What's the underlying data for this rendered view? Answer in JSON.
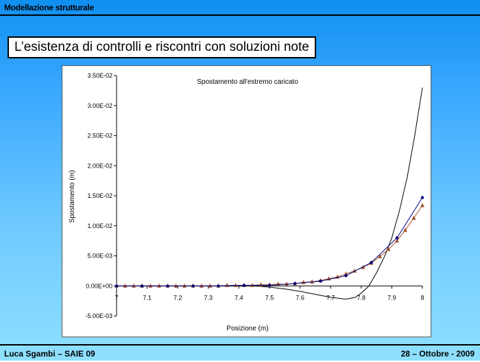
{
  "header": {
    "title": "Modellazione strutturale"
  },
  "slide": {
    "title": "L’esistenza di controlli e riscontri con soluzioni note"
  },
  "footer": {
    "left": "Luca Sgambi – SAIE 09",
    "right": "28 – Ottobre - 2009"
  },
  "chart_data": {
    "type": "line",
    "title": "Spostamento all'estremo caricato",
    "xlabel": "Posizione (m)",
    "ylabel": "Spostamento (m)",
    "xlim": [
      7,
      8
    ],
    "ylim": [
      -0.005,
      0.035
    ],
    "xticks": [
      "7",
      "7.1",
      "7.2",
      "7.3",
      "7.4",
      "7.5",
      "7.6",
      "7.7",
      "7.8",
      "7.9",
      "8"
    ],
    "yticks": [
      "-5.00E-03",
      "0.00E+00",
      "5.00E-03",
      "1.00E-02",
      "1.50E-02",
      "2.00E-02",
      "2.50E-02",
      "3.00E-02",
      "3.50E-02"
    ],
    "grid": false,
    "series": [
      {
        "marker": "circle",
        "color": "#000080",
        "x": [
          7,
          7.083,
          7.167,
          7.25,
          7.333,
          7.417,
          7.5,
          7.583,
          7.667,
          7.75,
          7.833,
          7.917,
          8
        ],
        "y": [
          0,
          0,
          0,
          0,
          0,
          0.0001,
          0.0001,
          0.0004,
          0.0008,
          0.0017,
          0.0039,
          0.008,
          0.0147
        ]
      },
      {
        "marker": "triangle",
        "color": "#a0522d",
        "x": [
          7,
          7.028,
          7.056,
          7.083,
          7.111,
          7.139,
          7.167,
          7.194,
          7.222,
          7.25,
          7.278,
          7.306,
          7.333,
          7.361,
          7.389,
          7.417,
          7.444,
          7.472,
          7.5,
          7.528,
          7.556,
          7.583,
          7.611,
          7.639,
          7.667,
          7.694,
          7.722,
          7.75,
          7.778,
          7.806,
          7.833,
          7.861,
          7.889,
          7.917,
          7.944,
          7.972,
          8
        ],
        "y": [
          0,
          0,
          0,
          0,
          0,
          0,
          0,
          0,
          0,
          0,
          0,
          0,
          0,
          0.0001,
          0.0001,
          0.0001,
          0.0001,
          0.0002,
          0.0002,
          0.0003,
          0.0003,
          0.0004,
          0.0006,
          0.0007,
          0.0009,
          0.0012,
          0.0015,
          0.002,
          0.0025,
          0.0031,
          0.0038,
          0.0049,
          0.0061,
          0.0075,
          0.0093,
          0.0113,
          0.0134
        ]
      },
      {
        "marker": "none",
        "color": "#000000",
        "x": [
          7,
          7.1,
          7.2,
          7.3,
          7.4,
          7.45,
          7.5,
          7.55,
          7.6,
          7.65,
          7.7,
          7.75,
          7.78,
          7.8,
          7.825,
          7.85,
          7.875,
          7.9,
          7.925,
          7.95,
          7.975,
          8
        ],
        "y": [
          0,
          0,
          0,
          0,
          0,
          0,
          -0.0002,
          -0.0005,
          -0.0009,
          -0.0014,
          -0.0019,
          -0.0022,
          -0.0019,
          -0.0012,
          0,
          0.0022,
          0.0048,
          0.008,
          0.0125,
          0.018,
          0.025,
          0.033
        ]
      }
    ]
  }
}
